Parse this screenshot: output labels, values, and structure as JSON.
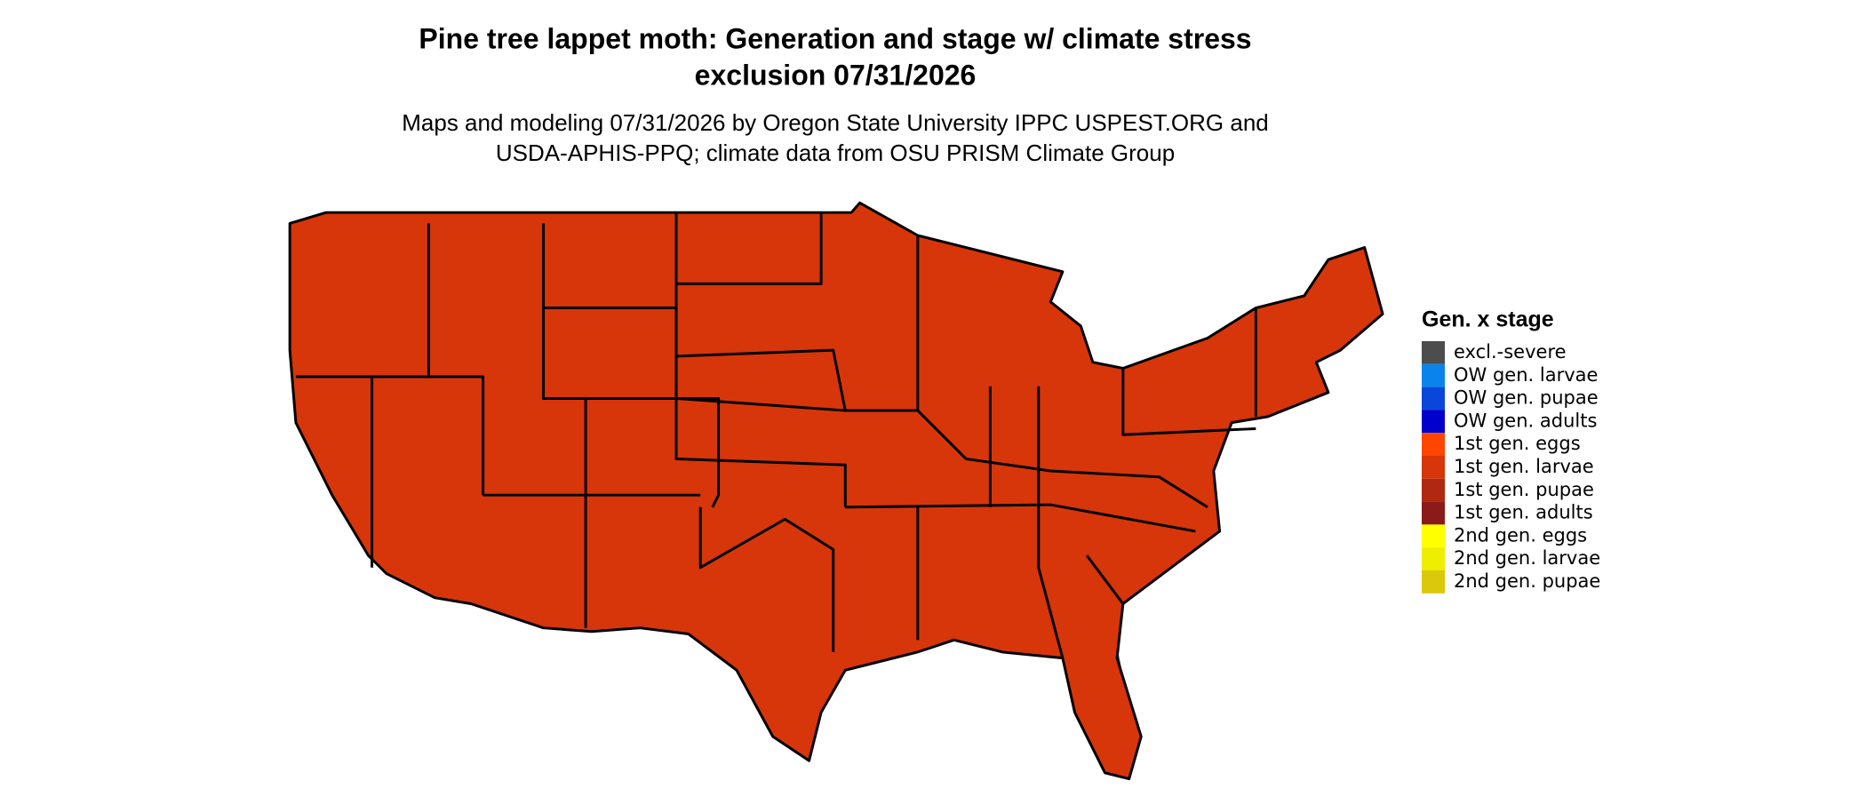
{
  "title_lines": [
    "Pine tree lappet moth: Generation and stage w/ climate stress",
    "exclusion 07/31/2026"
  ],
  "subtitle_lines": [
    "Maps and modeling 07/31/2026 by Oregon State University IPPC USPEST.ORG and",
    "USDA-APHIS-PPQ; climate data from OSU PRISM Climate Group"
  ],
  "legend": {
    "title": "Gen. x stage",
    "items": [
      {
        "label": "excl.-severe",
        "color": "#4d4d4d"
      },
      {
        "label": "OW gen. larvae",
        "color": "#0a84ec"
      },
      {
        "label": "OW gen. pupae",
        "color": "#0a46dc"
      },
      {
        "label": "OW gen. adults",
        "color": "#0000cc"
      },
      {
        "label": "1st gen. eggs",
        "color": "#ff4500"
      },
      {
        "label": "1st gen. larvae",
        "color": "#d7350a"
      },
      {
        "label": "1st gen. pupae",
        "color": "#b0280f"
      },
      {
        "label": "1st gen. adults",
        "color": "#8b1a1a"
      },
      {
        "label": "2nd gen. eggs",
        "color": "#ffff00"
      },
      {
        "label": "2nd gen. larvae",
        "color": "#eeee00"
      },
      {
        "label": "2nd gen. pupae",
        "color": "#dcc80a"
      }
    ]
  }
}
